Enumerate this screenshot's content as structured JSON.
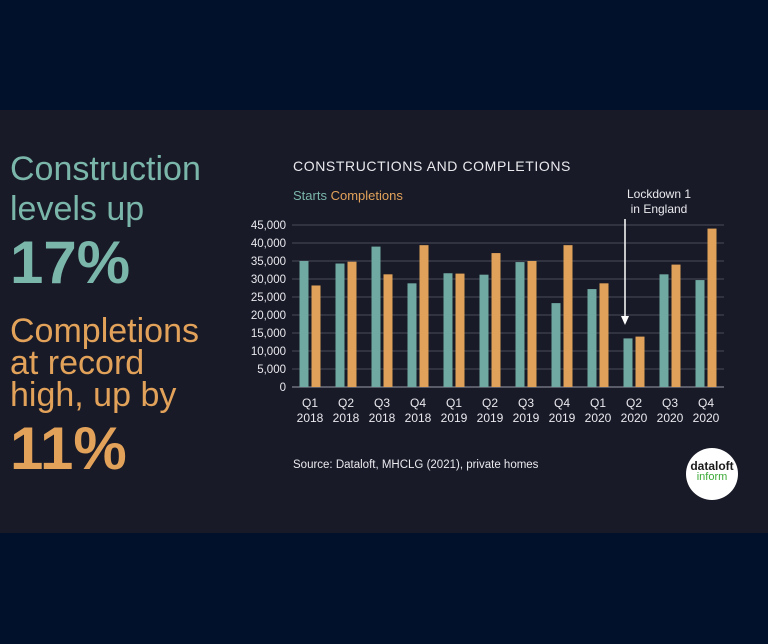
{
  "headline": {
    "construction_line1": "Construction",
    "construction_line2": "levels up",
    "construction_pct": "17%",
    "completions_line1": "Completions",
    "completions_line2": "at record",
    "completions_line3": "high, up by",
    "completions_pct": "11%"
  },
  "source": "Source: Dataloft, MHCLG (2021), private homes",
  "logo": {
    "line1": "dataloft",
    "line2": "inform"
  },
  "colors": {
    "starts": "#6fa9a1",
    "completions": "#e0a15a",
    "background": "#02112b",
    "panel": "#181a27",
    "text": "#e9e9ee"
  },
  "chart_data": {
    "type": "bar",
    "title": "CONSTRUCTIONS AND COMPLETIONS",
    "legend_position": "top-left",
    "categories": [
      [
        "Q1",
        "2018"
      ],
      [
        "Q2",
        "2018"
      ],
      [
        "Q3",
        "2018"
      ],
      [
        "Q4",
        "2018"
      ],
      [
        "Q1",
        "2019"
      ],
      [
        "Q2",
        "2019"
      ],
      [
        "Q3",
        "2019"
      ],
      [
        "Q4",
        "2019"
      ],
      [
        "Q1",
        "2020"
      ],
      [
        "Q2",
        "2020"
      ],
      [
        "Q3",
        "2020"
      ],
      [
        "Q4",
        "2020"
      ]
    ],
    "series": [
      {
        "name": "Starts",
        "values": [
          35000,
          34300,
          39000,
          28800,
          31600,
          31200,
          34700,
          23300,
          27200,
          13500,
          31300,
          29700
        ]
      },
      {
        "name": "Completions",
        "values": [
          28200,
          34800,
          31300,
          39400,
          31500,
          37200,
          35000,
          39400,
          28800,
          14000,
          34000,
          44000
        ]
      }
    ],
    "ylim": [
      0,
      45000
    ],
    "yticks": [
      0,
      5000,
      10000,
      15000,
      20000,
      25000,
      30000,
      35000,
      40000,
      45000
    ],
    "ytick_labels": [
      "0",
      "5,000",
      "10,000",
      "15,000",
      "20,000",
      "25,000",
      "30,000",
      "35,000",
      "40,000",
      "45,000"
    ],
    "grid": true,
    "annotation": {
      "line1": "Lockdown 1",
      "line2": "in England",
      "category_index": 9
    }
  }
}
